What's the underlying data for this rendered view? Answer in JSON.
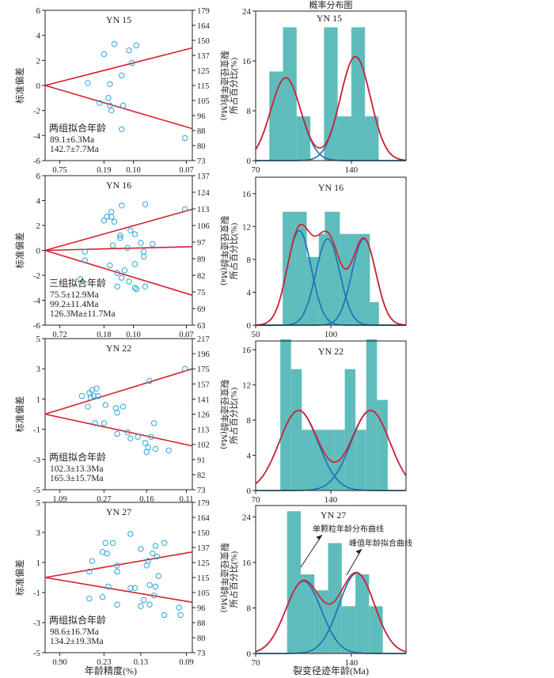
{
  "figure": {
    "left_xlabel": "年龄精度(%)",
    "right_xlabel": "裂变径迹年龄(Ma)",
    "right_header": "概率分布图"
  },
  "colors": {
    "marker": "#2aa7d9",
    "line": "#d61f2e",
    "bar": "#5fbcbc",
    "curve_blue": "#1f73b7",
    "curve_red": "#d61f2e",
    "axis": "#222222"
  },
  "chart_data": [
    {
      "type": "scatter",
      "kind": "radial",
      "sample": "YN 15",
      "ylabel": "标准偏差",
      "right_axis_label": "裂变径迹年龄(Ma)",
      "ylim": [
        -6,
        6
      ],
      "yticks": [
        -6,
        -4,
        -2,
        0,
        2,
        4,
        6
      ],
      "xlim": [
        0,
        5
      ],
      "xtick_values": [
        0.5,
        2.0,
        3.0,
        4.8
      ],
      "xtick_labels": [
        "0.75",
        "0.19",
        "0.10",
        "0.07"
      ],
      "age_ticks": [
        "179",
        "164",
        "150",
        "137",
        "125",
        "115",
        "105",
        "96",
        "88",
        "80",
        "73"
      ],
      "fit_title": "两组拟合年龄",
      "fit_ages": [
        "89.1±6.3Ma",
        "142.7±7.7Ma"
      ],
      "lines": [
        {
          "slope": 0.6
        },
        {
          "slope": -0.69
        }
      ],
      "points": [
        {
          "x": 1.45,
          "y": 0.2
        },
        {
          "x": 2.0,
          "y": 2.5
        },
        {
          "x": 2.35,
          "y": 3.3
        },
        {
          "x": 3.1,
          "y": 3.2
        },
        {
          "x": 2.85,
          "y": 2.8
        },
        {
          "x": 2.95,
          "y": 1.8
        },
        {
          "x": 2.6,
          "y": 0.8
        },
        {
          "x": 2.2,
          "y": 0.1
        },
        {
          "x": 1.85,
          "y": -1.4
        },
        {
          "x": 2.15,
          "y": -1.0
        },
        {
          "x": 2.2,
          "y": -1.6
        },
        {
          "x": 2.25,
          "y": -2.0
        },
        {
          "x": 2.65,
          "y": -1.6
        },
        {
          "x": 2.6,
          "y": -3.5
        },
        {
          "x": 4.75,
          "y": -4.2
        }
      ]
    },
    {
      "type": "scatter",
      "kind": "radial",
      "sample": "YN 16",
      "ylabel": "标准偏差",
      "right_axis_label": "裂变径迹年龄(Ma)",
      "ylim": [
        -6,
        6
      ],
      "yticks": [
        -6,
        -4,
        -2,
        0,
        2,
        4,
        6
      ],
      "xlim": [
        0,
        5
      ],
      "xtick_values": [
        0.5,
        2.0,
        3.0,
        4.8
      ],
      "xtick_labels": [
        "0.72",
        "0.18",
        "0.10",
        "0.07"
      ],
      "age_ticks": [
        "137",
        "124",
        "113",
        "106",
        "97",
        "89",
        "82",
        "75",
        "69",
        "63"
      ],
      "fit_title": "三组拟合年龄",
      "fit_ages": [
        "75.5±12.9Ma",
        "99.2±11.4Ma",
        "126.3Ma±11.7Ma"
      ],
      "lines": [
        {
          "slope": 0.66
        },
        {
          "slope": 0.06
        },
        {
          "slope": -0.72
        }
      ],
      "points": [
        {
          "x": 2.1,
          "y": 2.7
        },
        {
          "x": 2.25,
          "y": 2.7
        },
        {
          "x": 2.25,
          "y": 3.1
        },
        {
          "x": 2.35,
          "y": 2.3
        },
        {
          "x": 2.6,
          "y": 3.6
        },
        {
          "x": 3.4,
          "y": 3.7
        },
        {
          "x": 4.75,
          "y": 3.3
        },
        {
          "x": 2.0,
          "y": 2.4
        },
        {
          "x": 2.55,
          "y": 1.0
        },
        {
          "x": 2.55,
          "y": 1.2
        },
        {
          "x": 2.9,
          "y": 1.6
        },
        {
          "x": 3.05,
          "y": 1.3
        },
        {
          "x": 3.25,
          "y": 0.6
        },
        {
          "x": 2.3,
          "y": 0.4
        },
        {
          "x": 2.8,
          "y": 0.2
        },
        {
          "x": 3.65,
          "y": 0.5
        },
        {
          "x": 3.35,
          "y": -0.1
        },
        {
          "x": 3.35,
          "y": -0.5
        },
        {
          "x": 1.35,
          "y": -0.1
        },
        {
          "x": 1.35,
          "y": -0.8
        },
        {
          "x": 2.2,
          "y": -1.2
        },
        {
          "x": 2.45,
          "y": -1.8
        },
        {
          "x": 2.7,
          "y": -1.6
        },
        {
          "x": 3.05,
          "y": -1.1
        },
        {
          "x": 2.6,
          "y": -2.2
        },
        {
          "x": 2.85,
          "y": -2.5
        },
        {
          "x": 3.05,
          "y": -3.0
        },
        {
          "x": 1.2,
          "y": -2.3
        },
        {
          "x": 2.45,
          "y": -2.9
        },
        {
          "x": 3.1,
          "y": -3.1
        },
        {
          "x": 3.4,
          "y": -2.9
        }
      ]
    },
    {
      "type": "scatter",
      "kind": "radial",
      "sample": "YN 22",
      "ylabel": "标准偏差",
      "right_axis_label": "裂变径迹年龄(Ma)",
      "ylim": [
        -5,
        5
      ],
      "yticks": [
        -5,
        -3,
        -1,
        1,
        3,
        5
      ],
      "xlim": [
        0,
        5
      ],
      "xtick_values": [
        0.5,
        2.0,
        3.45,
        4.8
      ],
      "xtick_labels": [
        "1.09",
        "0.27",
        "0.16",
        "0.11"
      ],
      "age_ticks": [
        "217",
        "196",
        "175",
        "157",
        "141",
        "126",
        "113",
        "102",
        "91",
        "82",
        "73"
      ],
      "fit_title": "两组拟合年龄",
      "fit_ages": [
        "102.3±13.3Ma",
        "165.3±15.7Ma"
      ],
      "lines": [
        {
          "slope": 0.6
        },
        {
          "slope": -0.42
        }
      ],
      "points": [
        {
          "x": 1.25,
          "y": 1.2
        },
        {
          "x": 1.5,
          "y": 1.4
        },
        {
          "x": 1.6,
          "y": 1.6
        },
        {
          "x": 1.75,
          "y": 1.7
        },
        {
          "x": 1.55,
          "y": 1.1
        },
        {
          "x": 1.65,
          "y": 1.2
        },
        {
          "x": 1.8,
          "y": 1.2
        },
        {
          "x": 1.45,
          "y": 0.5
        },
        {
          "x": 2.05,
          "y": 0.6
        },
        {
          "x": 2.4,
          "y": 0.4
        },
        {
          "x": 2.45,
          "y": 0.1
        },
        {
          "x": 2.65,
          "y": 0.5
        },
        {
          "x": 3.55,
          "y": 2.2
        },
        {
          "x": 4.75,
          "y": 3.0
        },
        {
          "x": 1.7,
          "y": -0.6
        },
        {
          "x": 2.0,
          "y": -0.6
        },
        {
          "x": 3.7,
          "y": -0.6
        },
        {
          "x": 2.45,
          "y": -1.3
        },
        {
          "x": 2.8,
          "y": -1.2
        },
        {
          "x": 2.9,
          "y": -1.6
        },
        {
          "x": 3.15,
          "y": -1.5
        },
        {
          "x": 3.4,
          "y": -1.9
        },
        {
          "x": 3.6,
          "y": -1.5
        },
        {
          "x": 3.5,
          "y": -2.2
        },
        {
          "x": 3.45,
          "y": -2.5
        },
        {
          "x": 3.75,
          "y": -2.3
        },
        {
          "x": 4.2,
          "y": -2.4
        }
      ]
    },
    {
      "type": "scatter",
      "kind": "radial",
      "sample": "YN 27",
      "ylabel": "标准偏差",
      "right_axis_label": "裂变径迹年龄(Ma)",
      "ylim": [
        -5,
        5
      ],
      "yticks": [
        -5,
        -3,
        -1,
        1,
        3,
        5
      ],
      "xlim": [
        0,
        5
      ],
      "xtick_values": [
        0.5,
        2.0,
        3.25,
        4.8
      ],
      "xtick_labels": [
        "0.90",
        "0.23",
        "0.13",
        "0.09"
      ],
      "age_ticks": [
        "179",
        "164",
        "150",
        "137",
        "125",
        "115",
        "105",
        "96",
        "88",
        "80",
        "73"
      ],
      "fit_title": "两组拟合年龄",
      "fit_ages": [
        "98.6±16.7Ma",
        "134.2±19.3Ma"
      ],
      "lines": [
        {
          "slope": 0.34
        },
        {
          "slope": -0.33
        }
      ],
      "points": [
        {
          "x": 2.05,
          "y": 2.3
        },
        {
          "x": 2.3,
          "y": 2.3
        },
        {
          "x": 2.9,
          "y": 2.9
        },
        {
          "x": 4.05,
          "y": 2.3
        },
        {
          "x": 3.75,
          "y": 2.1
        },
        {
          "x": 1.95,
          "y": 1.7
        },
        {
          "x": 2.1,
          "y": 1.6
        },
        {
          "x": 3.25,
          "y": 1.9
        },
        {
          "x": 3.65,
          "y": 1.6
        },
        {
          "x": 3.8,
          "y": 1.4
        },
        {
          "x": 3.5,
          "y": 1.1
        },
        {
          "x": 3.45,
          "y": 0.8
        },
        {
          "x": 2.45,
          "y": 0.8
        },
        {
          "x": 1.6,
          "y": 1.1
        },
        {
          "x": 2.45,
          "y": 0.4
        },
        {
          "x": 2.15,
          "y": -0.6
        },
        {
          "x": 2.9,
          "y": -0.7
        },
        {
          "x": 3.05,
          "y": -0.7
        },
        {
          "x": 3.55,
          "y": -0.5
        },
        {
          "x": 3.75,
          "y": -0.6
        },
        {
          "x": 3.7,
          "y": -1.2
        },
        {
          "x": 3.35,
          "y": -1.5
        },
        {
          "x": 3.55,
          "y": -1.8
        },
        {
          "x": 3.25,
          "y": -1.9
        },
        {
          "x": 2.45,
          "y": -1.8
        },
        {
          "x": 1.5,
          "y": -1.4
        },
        {
          "x": 1.95,
          "y": -1.3
        },
        {
          "x": 4.55,
          "y": -2.0
        },
        {
          "x": 4.05,
          "y": -2.5
        },
        {
          "x": 4.6,
          "y": -2.5
        },
        {
          "x": 1.5,
          "y": 0.4
        },
        {
          "x": 3.85,
          "y": 0.1
        }
      ]
    },
    {
      "type": "bar",
      "kind": "histogram_with_density",
      "sample": "YN 15",
      "title": "YN 15",
      "ylabel": "所占百分比(%)",
      "xlim": [
        70,
        180
      ],
      "xticks": [
        70,
        140
      ],
      "ylim": [
        0,
        24
      ],
      "yticks": [
        0,
        8,
        16,
        24
      ],
      "bins": [
        {
          "start": 80,
          "end": 90,
          "value": 14.3
        },
        {
          "start": 90,
          "end": 100,
          "value": 21.4
        },
        {
          "start": 100,
          "end": 110,
          "value": 7.1
        },
        {
          "start": 120,
          "end": 130,
          "value": 21.4
        },
        {
          "start": 130,
          "end": 140,
          "value": 7.1
        },
        {
          "start": 140,
          "end": 150,
          "value": 21.4
        },
        {
          "start": 150,
          "end": 160,
          "value": 7.1
        }
      ],
      "components": [
        {
          "mean": 92,
          "sd": 11,
          "peak": 13.3
        },
        {
          "mean": 143,
          "sd": 11,
          "peak": 16.7
        }
      ],
      "annotations": []
    },
    {
      "type": "bar",
      "kind": "histogram_with_density",
      "sample": "YN 16",
      "title": "YN 16",
      "ylabel": "所占百分比(%)",
      "xlim": [
        50,
        150
      ],
      "xticks": [
        50,
        100
      ],
      "ylim": [
        0,
        18
      ],
      "yticks": [
        0,
        4,
        8,
        12,
        16
      ],
      "bins": [
        {
          "start": 68,
          "end": 76,
          "value": 13.8
        },
        {
          "start": 76,
          "end": 84,
          "value": 13.8
        },
        {
          "start": 84,
          "end": 92,
          "value": 8.3
        },
        {
          "start": 92,
          "end": 96,
          "value": 11.1
        },
        {
          "start": 96,
          "end": 106,
          "value": 13.8
        },
        {
          "start": 106,
          "end": 116,
          "value": 11.1
        },
        {
          "start": 116,
          "end": 126,
          "value": 11.1
        },
        {
          "start": 126,
          "end": 132,
          "value": 2.8
        }
      ],
      "components": [
        {
          "mean": 79,
          "sd": 8,
          "peak": 11.5
        },
        {
          "mean": 98,
          "sd": 8,
          "peak": 10.5
        },
        {
          "mean": 122,
          "sd": 8,
          "peak": 10.5
        }
      ],
      "annotations": []
    },
    {
      "type": "bar",
      "kind": "histogram_with_density",
      "sample": "YN 22",
      "title": "YN 22",
      "ylabel": "所占百分比(%)",
      "xlim": [
        70,
        210
      ],
      "xticks": [
        70,
        140
      ],
      "ylim": [
        0,
        17
      ],
      "yticks": [
        0,
        4,
        8,
        12,
        16
      ],
      "bins": [
        {
          "start": 93,
          "end": 103,
          "value": 17.2
        },
        {
          "start": 103,
          "end": 113,
          "value": 13.8
        },
        {
          "start": 113,
          "end": 123,
          "value": 6.9
        },
        {
          "start": 123,
          "end": 133,
          "value": 6.9
        },
        {
          "start": 133,
          "end": 143,
          "value": 6.9
        },
        {
          "start": 143,
          "end": 153,
          "value": 6.9
        },
        {
          "start": 153,
          "end": 163,
          "value": 13.8
        },
        {
          "start": 163,
          "end": 173,
          "value": 6.9
        },
        {
          "start": 173,
          "end": 183,
          "value": 17.2
        },
        {
          "start": 183,
          "end": 193,
          "value": 10.3
        }
      ],
      "components": [
        {
          "mean": 110,
          "sd": 18,
          "peak": 9.1
        },
        {
          "mean": 177,
          "sd": 18,
          "peak": 9.1
        }
      ],
      "annotations": []
    },
    {
      "type": "bar",
      "kind": "histogram_with_density",
      "sample": "YN 27",
      "title": "YN 27",
      "ylabel": "所占百分比(%)",
      "xlim": [
        70,
        180
      ],
      "xticks": [
        70,
        140
      ],
      "ylim": [
        0,
        26
      ],
      "yticks": [
        0,
        8,
        16,
        24
      ],
      "bins": [
        {
          "start": 93,
          "end": 103,
          "value": 25.0
        },
        {
          "start": 103,
          "end": 113,
          "value": 13.9
        },
        {
          "start": 113,
          "end": 123,
          "value": 11.1
        },
        {
          "start": 123,
          "end": 133,
          "value": 19.4
        },
        {
          "start": 133,
          "end": 143,
          "value": 8.3
        },
        {
          "start": 143,
          "end": 153,
          "value": 13.9
        },
        {
          "start": 153,
          "end": 163,
          "value": 8.3
        }
      ],
      "components": [
        {
          "mean": 105,
          "sd": 13,
          "peak": 12.7
        },
        {
          "mean": 144,
          "sd": 13,
          "peak": 14.1
        }
      ],
      "annotations": [
        "单颗粒年龄分布曲线",
        "峰值年龄拟合曲线"
      ]
    }
  ]
}
